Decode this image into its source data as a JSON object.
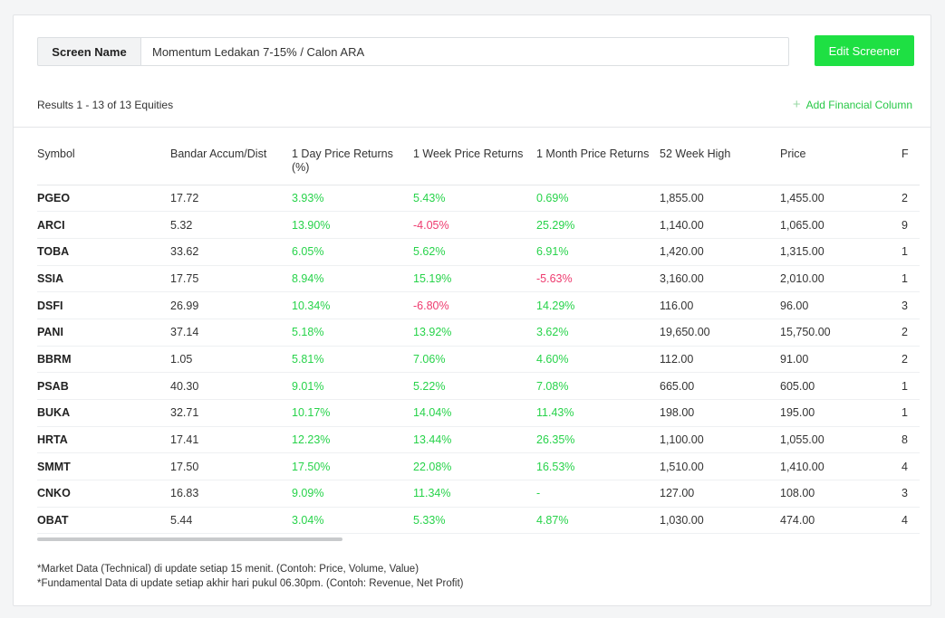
{
  "screen": {
    "label": "Screen Name",
    "value": "Momentum Ledakan 7-15% / Calon ARA",
    "edit_label": "Edit Screener"
  },
  "results_text": "Results 1 - 13 of 13 Equities",
  "add_column": {
    "icon": "plus-icon",
    "label": "Add Financial Column"
  },
  "colors": {
    "accent": "#1ee043",
    "positive": "#27d34a",
    "negative": "#ee3a6e"
  },
  "table": {
    "headers": [
      "Symbol",
      "Bandar Accum/Dist",
      "1 Day Price Returns (%)",
      "1 Week Price Returns",
      "1 Month Price Returns",
      "52 Week High",
      "Price",
      "F"
    ],
    "rows": [
      [
        "PGEO",
        "17.72",
        "3.93%",
        "5.43%",
        "0.69%",
        "1,855.00",
        "1,455.00",
        "2"
      ],
      [
        "ARCI",
        "5.32",
        "13.90%",
        "-4.05%",
        "25.29%",
        "1,140.00",
        "1,065.00",
        "9"
      ],
      [
        "TOBA",
        "33.62",
        "6.05%",
        "5.62%",
        "6.91%",
        "1,420.00",
        "1,315.00",
        "1"
      ],
      [
        "SSIA",
        "17.75",
        "8.94%",
        "15.19%",
        "-5.63%",
        "3,160.00",
        "2,010.00",
        "1"
      ],
      [
        "DSFI",
        "26.99",
        "10.34%",
        "-6.80%",
        "14.29%",
        "116.00",
        "96.00",
        "3"
      ],
      [
        "PANI",
        "37.14",
        "5.18%",
        "13.92%",
        "3.62%",
        "19,650.00",
        "15,750.00",
        "2"
      ],
      [
        "BBRM",
        "1.05",
        "5.81%",
        "7.06%",
        "4.60%",
        "112.00",
        "91.00",
        "2"
      ],
      [
        "PSAB",
        "40.30",
        "9.01%",
        "5.22%",
        "7.08%",
        "665.00",
        "605.00",
        "1"
      ],
      [
        "BUKA",
        "32.71",
        "10.17%",
        "14.04%",
        "11.43%",
        "198.00",
        "195.00",
        "1"
      ],
      [
        "HRTA",
        "17.41",
        "12.23%",
        "13.44%",
        "26.35%",
        "1,100.00",
        "1,055.00",
        "8"
      ],
      [
        "SMMT",
        "17.50",
        "17.50%",
        "22.08%",
        "16.53%",
        "1,510.00",
        "1,410.00",
        "4"
      ],
      [
        "CNKO",
        "16.83",
        "9.09%",
        "11.34%",
        "-",
        "127.00",
        "108.00",
        "3"
      ],
      [
        "OBAT",
        "5.44",
        "3.04%",
        "5.33%",
        "4.87%",
        "1,030.00",
        "474.00",
        "4"
      ]
    ]
  },
  "notes": [
    "*Market Data (Technical) di update setiap 15 menit. (Contoh: Price, Volume, Value)",
    "*Fundamental Data di update setiap akhir hari pukul 06.30pm. (Contoh: Revenue, Net Profit)"
  ]
}
